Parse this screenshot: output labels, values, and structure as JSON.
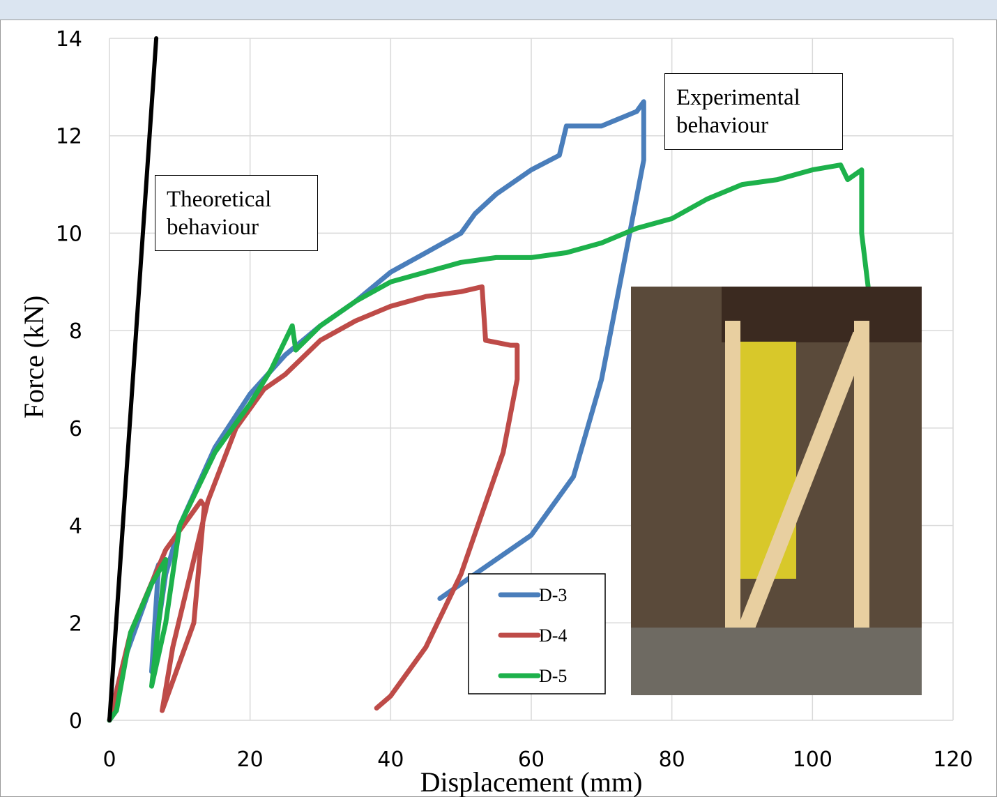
{
  "chart_data": {
    "type": "line",
    "x_label": "Displacement (mm)",
    "y_label": "Force (kN)",
    "xlim": [
      0,
      120
    ],
    "xticks": [
      0,
      20,
      40,
      60,
      80,
      100,
      120
    ],
    "ylim": [
      0,
      14
    ],
    "yticks": [
      0,
      2,
      4,
      6,
      8,
      10,
      12,
      14
    ],
    "grid": true,
    "legend": "lower-right",
    "annotations": [
      "Theoretical behaviour",
      "Experimental behaviour"
    ],
    "theoretical": {
      "color": "#000000",
      "x": [
        0,
        6.65
      ],
      "values": [
        0,
        14
      ]
    },
    "series": [
      {
        "name": "D-3",
        "color": "#4a7ebb",
        "x": [
          0,
          2,
          5,
          7,
          6,
          8,
          10,
          15,
          20,
          25,
          30,
          35,
          40,
          45,
          50,
          52,
          55,
          60,
          64,
          65,
          70,
          75,
          76,
          76,
          74,
          70,
          66,
          60,
          52,
          47
        ],
        "values": [
          0,
          1.2,
          2.4,
          3.2,
          1.0,
          3.0,
          4.0,
          5.6,
          6.7,
          7.5,
          8.1,
          8.6,
          9.2,
          9.6,
          10.0,
          10.4,
          10.8,
          11.3,
          11.6,
          12.2,
          12.2,
          12.5,
          12.7,
          11.5,
          10.0,
          7.0,
          5.0,
          3.8,
          3.0,
          2.5
        ]
      },
      {
        "name": "D-4",
        "color": "#be4b48",
        "x": [
          0,
          3,
          8,
          13,
          13.5,
          12,
          9,
          7.5,
          9,
          14,
          18,
          22,
          25,
          30,
          35,
          40,
          45,
          50,
          53,
          53.5,
          57,
          58,
          58,
          56,
          50,
          45,
          40,
          38
        ],
        "values": [
          0,
          1.8,
          3.5,
          4.5,
          4.4,
          2.0,
          0.8,
          0.2,
          1.5,
          4.5,
          6.0,
          6.8,
          7.1,
          7.8,
          8.2,
          8.5,
          8.7,
          8.8,
          8.9,
          7.8,
          7.7,
          7.7,
          7.0,
          5.5,
          3.0,
          1.5,
          0.5,
          0.25
        ]
      },
      {
        "name": "D-5",
        "color": "#1db14b",
        "x": [
          0,
          1,
          3,
          6,
          8,
          7,
          6,
          8,
          10,
          15,
          20,
          23,
          26,
          26.5,
          30,
          35,
          40,
          45,
          50,
          55,
          60,
          65,
          70,
          75,
          80,
          85,
          90,
          95,
          100,
          104,
          105,
          107,
          107,
          108
        ],
        "values": [
          0,
          0.2,
          1.8,
          2.8,
          3.3,
          2.0,
          0.7,
          2.0,
          4.0,
          5.5,
          6.5,
          7.2,
          8.1,
          7.6,
          8.1,
          8.6,
          9.0,
          9.2,
          9.4,
          9.5,
          9.5,
          9.6,
          9.8,
          10.1,
          10.3,
          10.7,
          11.0,
          11.1,
          11.3,
          11.4,
          11.1,
          11.3,
          10.0,
          8.8
        ]
      }
    ]
  }
}
